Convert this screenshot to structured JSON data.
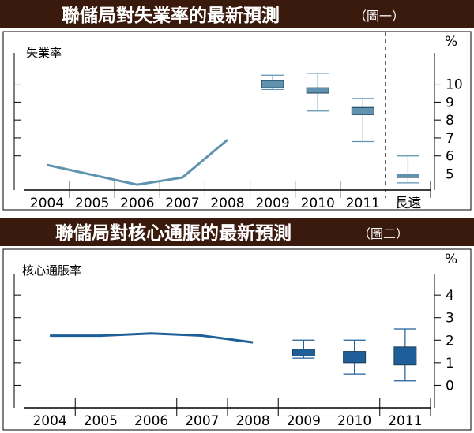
{
  "colors": {
    "banner_bg": "#3b1a0e",
    "banner_text": "#ffffff",
    "unemployment_color": "#5f93b0",
    "inflation_color": "#1f5f99",
    "axis": "#000000"
  },
  "chart_data": [
    {
      "type": "line",
      "title": "聯儲局對失業率的最新預測",
      "subtitle": "（圖一）",
      "series_label": "失業率",
      "unit": "%",
      "categories": [
        "2004",
        "2005",
        "2006",
        "2007",
        "2008",
        "2009",
        "2010",
        "2011",
        "長遠"
      ],
      "yticks": [
        5,
        6,
        7,
        8,
        9,
        10
      ],
      "ylim": [
        4.1,
        11.3
      ],
      "history": [
        {
          "x": "2004",
          "y": 5.5
        },
        {
          "x": "2006",
          "y": 4.4
        },
        {
          "x": "2007",
          "y": 4.8
        },
        {
          "x": "2008",
          "y": 6.9
        }
      ],
      "forecast_boxes": [
        {
          "x": "2009",
          "low": 9.7,
          "q1": 9.8,
          "q3": 10.2,
          "high": 10.5
        },
        {
          "x": "2010",
          "low": 8.5,
          "q1": 9.5,
          "q3": 9.8,
          "high": 10.6
        },
        {
          "x": "2011",
          "low": 6.8,
          "q1": 8.3,
          "q3": 8.7,
          "high": 9.2
        },
        {
          "x": "長遠",
          "low": 4.5,
          "q1": 4.8,
          "q3": 5.0,
          "high": 6.0
        }
      ],
      "separator_before": "長遠"
    },
    {
      "type": "line",
      "title": "聯儲局對核心通脹的最新預測",
      "subtitle": "（圖二）",
      "series_label": "核心通脹率",
      "unit": "%",
      "categories": [
        "2004",
        "2005",
        "2006",
        "2007",
        "2008",
        "2009",
        "2010",
        "2011"
      ],
      "yticks": [
        0,
        1,
        2,
        3,
        4
      ],
      "ylim": [
        -1.0,
        4.6
      ],
      "history": [
        {
          "x": "2004",
          "y": 2.2
        },
        {
          "x": "2005",
          "y": 2.2
        },
        {
          "x": "2006",
          "y": 2.3
        },
        {
          "x": "2007",
          "y": 2.2
        },
        {
          "x": "2008",
          "y": 1.9
        }
      ],
      "forecast_boxes": [
        {
          "x": "2009",
          "low": 1.2,
          "q1": 1.3,
          "q3": 1.6,
          "high": 2.0
        },
        {
          "x": "2010",
          "low": 0.5,
          "q1": 1.0,
          "q3": 1.5,
          "high": 2.0
        },
        {
          "x": "2011",
          "low": 0.2,
          "q1": 0.9,
          "q3": 1.7,
          "high": 2.5
        }
      ]
    }
  ]
}
